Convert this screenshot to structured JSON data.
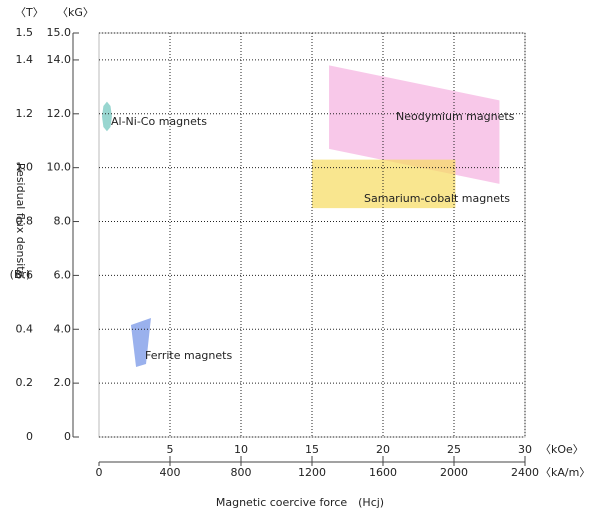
{
  "chart_data": {
    "type": "region",
    "ylabel": "Residual flux density",
    "ylabel_symbol": "(Br)",
    "xlabel": "Magnetic coercive force　(Hcj)",
    "y_unit": "〈kG〉",
    "y2_unit": "〈T〉",
    "x_unit": "〈kOe〉",
    "x2_unit": "〈kA/m〉",
    "xlim": [
      0,
      30
    ],
    "xticks": [
      5,
      10,
      15,
      20,
      25,
      30
    ],
    "x2lim": [
      0,
      2400
    ],
    "x2ticks": [
      0,
      400,
      800,
      1200,
      1600,
      2000,
      2400
    ],
    "ylim": [
      0,
      15
    ],
    "yticks": [
      0,
      {
        "value": 2,
        "label": "2.0"
      },
      {
        "value": 4,
        "label": "4.0"
      },
      {
        "value": 6,
        "label": "6.0"
      },
      {
        "value": 8,
        "label": "8.0"
      },
      {
        "value": 10,
        "label": "10.0"
      },
      {
        "value": 12,
        "label": "12.0"
      },
      {
        "value": 14,
        "label": "14.0"
      },
      {
        "value": 15,
        "label": "15.0"
      }
    ],
    "y2lim": [
      0,
      1.5
    ],
    "y2ticks": [
      0,
      0.2,
      0.4,
      0.6,
      0.8,
      {
        "value": 1,
        "label": "1.0"
      },
      1.2,
      1.4,
      1.5
    ],
    "grid": true,
    "series": [
      {
        "name": "Al-Ni-Co magnets",
        "color": "#6cc4bc",
        "x": [
          0.56,
          0.81,
          0.91,
          0.81,
          0.56,
          0.31,
          0.21,
          0.31
        ],
        "y": [
          12.45,
          12.29,
          11.9,
          11.51,
          11.35,
          11.51,
          11.9,
          12.29
        ]
      },
      {
        "name": "Neodymium magnets",
        "color": "#f5b0e0",
        "x": [
          16.2,
          28.2,
          28.2,
          16.2
        ],
        "y": [
          13.8,
          12.5,
          9.4,
          10.7
        ]
      },
      {
        "name": "Samarium-cobalt magnets",
        "color": "#f7dc60",
        "x": [
          15.0,
          25.1,
          25.1,
          15.0
        ],
        "y": [
          10.3,
          10.3,
          8.5,
          8.5
        ]
      },
      {
        "name": "Ferrite magnets",
        "color": "#6f90e6",
        "x": [
          2.25,
          3.66,
          3.31,
          2.61
        ],
        "y": [
          4.16,
          4.42,
          2.71,
          2.6
        ]
      }
    ]
  }
}
